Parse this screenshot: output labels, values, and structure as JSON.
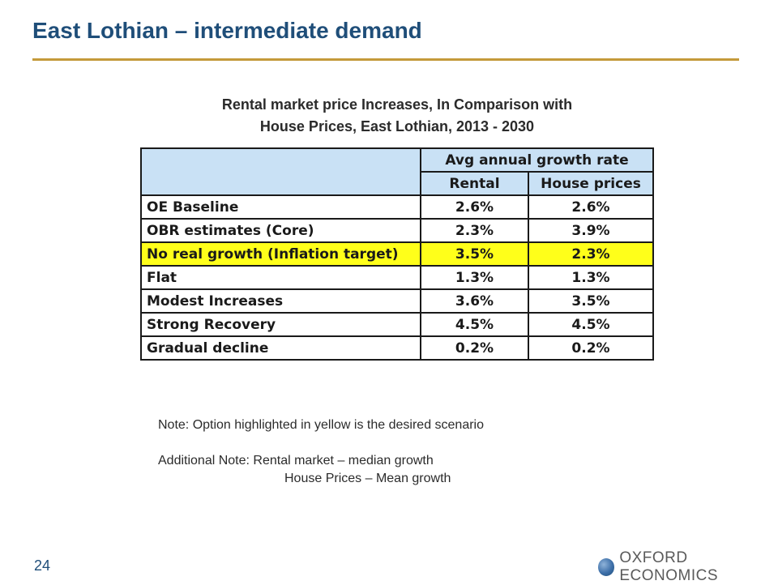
{
  "slide": {
    "title": "East Lothian – intermediate demand",
    "page_number": "24"
  },
  "table": {
    "title_line1": "Rental market price Increases, In Comparison with",
    "title_line2": "House Prices, East Lothian, 2013 - 2030",
    "group_header": "Avg annual growth rate",
    "col_rental": "Rental",
    "col_house": "House prices",
    "highlight_color": "#ffff1a",
    "header_color": "#c9e1f5",
    "rows": [
      {
        "label": "OE Baseline",
        "rental": "2.6%",
        "house": "2.6%"
      },
      {
        "label": "OBR estimates (Core)",
        "rental": "2.3%",
        "house": "3.9%"
      },
      {
        "label": "No real growth (Inflation target)",
        "rental": "3.5%",
        "house": "2.3%"
      },
      {
        "label": "Flat",
        "rental": "1.3%",
        "house": "1.3%"
      },
      {
        "label": "Modest Increases",
        "rental": "3.6%",
        "house": "3.5%"
      },
      {
        "label": "Strong Recovery",
        "rental": "4.5%",
        "house": "4.5%"
      },
      {
        "label": "Gradual decline",
        "rental": "0.2%",
        "house": "0.2%"
      }
    ]
  },
  "notes": {
    "note1": "Note: Option highlighted in yellow is the desired scenario",
    "note2_line1": "Additional Note: Rental market – median growth",
    "note2_line2": "House Prices – Mean growth"
  },
  "logo": {
    "icon": "globe-icon",
    "text": "OXFORD ECONOMICS"
  }
}
